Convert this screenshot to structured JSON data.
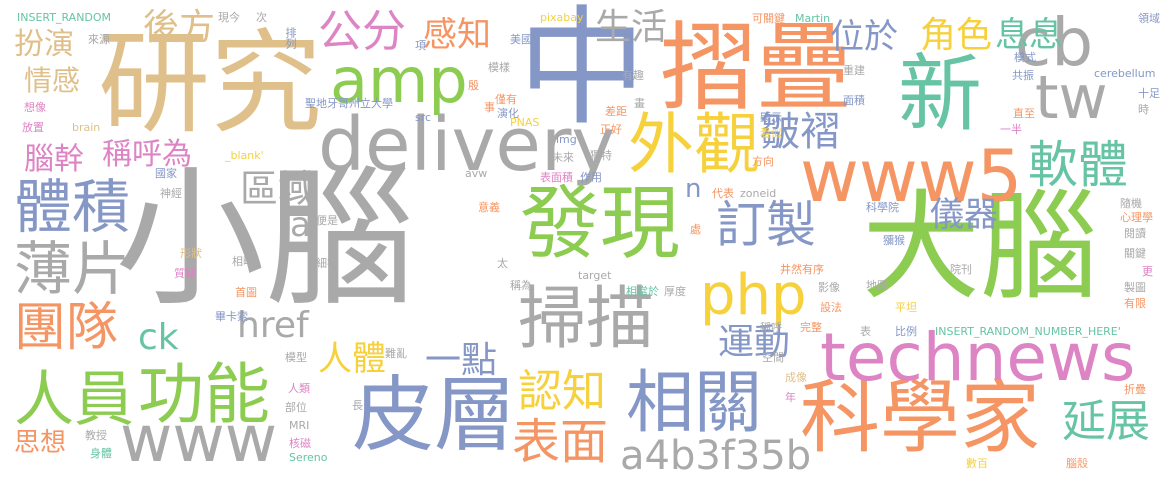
{
  "palette": {
    "gray": "#a9a9a9",
    "tan": "#e0c08a",
    "green": "#8ccc50",
    "blue": "#8497c6",
    "yellow": "#f6d13c",
    "orange": "#f59563",
    "pink": "#dd84c4",
    "teal": "#66c4a5"
  },
  "words": [
    {
      "text": "小腦",
      "color": "gray"
    },
    {
      "text": "大腦",
      "color": "green"
    },
    {
      "text": "中",
      "color": "blue"
    },
    {
      "text": "研究",
      "color": "tan"
    },
    {
      "text": "摺疊",
      "color": "orange"
    },
    {
      "text": "新",
      "color": "teal"
    },
    {
      "text": "cb",
      "color": "gray"
    },
    {
      "text": "tw",
      "color": "gray"
    },
    {
      "text": "delivery",
      "color": "gray"
    },
    {
      "text": "amp",
      "color": "green"
    },
    {
      "text": "www5",
      "color": "orange"
    },
    {
      "text": "發現",
      "color": "green"
    },
    {
      "text": "外觀",
      "color": "yellow"
    },
    {
      "text": "皮層",
      "color": "blue"
    },
    {
      "text": "科學家",
      "color": "orange"
    },
    {
      "text": "technews",
      "color": "pink"
    },
    {
      "text": "掃描",
      "color": "gray"
    },
    {
      "text": "相關",
      "color": "blue"
    },
    {
      "text": "www",
      "color": "gray"
    },
    {
      "text": "人員",
      "color": "green"
    },
    {
      "text": "功能",
      "color": "green"
    },
    {
      "text": "體積",
      "color": "blue"
    },
    {
      "text": "薄片",
      "color": "gray"
    },
    {
      "text": "團隊",
      "color": "orange"
    },
    {
      "text": "php",
      "color": "yellow"
    },
    {
      "text": "軟體",
      "color": "teal"
    },
    {
      "text": "訂製",
      "color": "blue"
    },
    {
      "text": "皺褶",
      "color": "blue"
    },
    {
      "text": "公分",
      "color": "pink"
    },
    {
      "text": "區域",
      "color": "gray"
    },
    {
      "text": "表面",
      "color": "orange"
    },
    {
      "text": "認知",
      "color": "yellow"
    },
    {
      "text": "a4b3f35b",
      "color": "gray"
    },
    {
      "text": "延展",
      "color": "teal"
    },
    {
      "text": "運動",
      "color": "blue"
    },
    {
      "text": "一點",
      "color": "blue"
    },
    {
      "text": "href",
      "color": "gray"
    },
    {
      "text": "ck",
      "color": "teal"
    },
    {
      "text": "人體",
      "color": "yellow"
    },
    {
      "text": "後方",
      "color": "tan"
    },
    {
      "text": "生活",
      "color": "gray"
    },
    {
      "text": "感知",
      "color": "orange"
    },
    {
      "text": "位於",
      "color": "blue"
    },
    {
      "text": "角色",
      "color": "yellow"
    },
    {
      "text": "息息",
      "color": "teal"
    },
    {
      "text": "扮演",
      "color": "tan"
    },
    {
      "text": "情感",
      "color": "tan"
    },
    {
      "text": "腦幹",
      "color": "pink"
    },
    {
      "text": "稱呼為",
      "color": "pink"
    },
    {
      "text": "儀器",
      "color": "blue"
    },
    {
      "text": "思想",
      "color": "orange"
    },
    {
      "text": "a",
      "color": "gray"
    },
    {
      "text": "n",
      "color": "blue"
    },
    {
      "text": "INSERT_RANDOM",
      "color": "teal"
    },
    {
      "text": "來源",
      "color": "gray"
    },
    {
      "text": "排列",
      "color": "blue"
    },
    {
      "text": "現今",
      "color": "gray"
    },
    {
      "text": "次",
      "color": "gray"
    },
    {
      "text": "pixabay",
      "color": "yellow"
    },
    {
      "text": "可關鍵",
      "color": "orange"
    },
    {
      "text": "Martin",
      "color": "teal"
    },
    {
      "text": "領域",
      "color": "blue"
    },
    {
      "text": "項",
      "color": "blue"
    },
    {
      "text": "美國",
      "color": "blue"
    },
    {
      "text": "殷",
      "color": "orange"
    },
    {
      "text": "模樣",
      "color": "gray"
    },
    {
      "text": "有趣",
      "color": "gray"
    },
    {
      "text": "重建",
      "color": "gray"
    },
    {
      "text": "模式",
      "color": "blue"
    },
    {
      "text": "共振",
      "color": "blue"
    },
    {
      "text": "cerebellum",
      "color": "blue"
    },
    {
      "text": "想像",
      "color": "pink"
    },
    {
      "text": "放置",
      "color": "pink"
    },
    {
      "text": "brain",
      "color": "tan"
    },
    {
      "text": "聖地牙哥州立大學",
      "color": "blue"
    },
    {
      "text": "src",
      "color": "blue"
    },
    {
      "text": "僅有",
      "color": "orange"
    },
    {
      "text": "演化",
      "color": "blue"
    },
    {
      "text": "事",
      "color": "orange"
    },
    {
      "text": "PNAS",
      "color": "yellow"
    },
    {
      "text": "差距",
      "color": "orange"
    },
    {
      "text": "畫",
      "color": "gray"
    },
    {
      "text": "顯示",
      "color": "blue"
    },
    {
      "text": "面積",
      "color": "blue"
    },
    {
      "text": "直至",
      "color": "orange"
    },
    {
      "text": "十足",
      "color": "blue"
    },
    {
      "text": "時",
      "color": "gray"
    },
    {
      "text": "_blank'",
      "color": "yellow"
    },
    {
      "text": "國家",
      "color": "blue"
    },
    {
      "text": "未來",
      "color": "gray"
    },
    {
      "text": "img",
      "color": "blue"
    },
    {
      "text": "正好",
      "color": "orange"
    },
    {
      "text": "獨特",
      "color": "gray"
    },
    {
      "text": "看似",
      "color": "yellow"
    },
    {
      "text": "一半",
      "color": "pink"
    },
    {
      "text": "神經",
      "color": "gray"
    },
    {
      "text": "avw",
      "color": "gray"
    },
    {
      "text": "表面積",
      "color": "pink"
    },
    {
      "text": "作用",
      "color": "blue"
    },
    {
      "text": "方向",
      "color": "orange"
    },
    {
      "text": "代表",
      "color": "orange"
    },
    {
      "text": "zoneid",
      "color": "gray"
    },
    {
      "text": "科學院",
      "color": "blue"
    },
    {
      "text": "隨機",
      "color": "gray"
    },
    {
      "text": "心理學",
      "color": "orange"
    },
    {
      "text": "閱讀",
      "color": "gray"
    },
    {
      "text": "意義",
      "color": "orange"
    },
    {
      "text": "處",
      "color": "orange"
    },
    {
      "text": "便是",
      "color": "gray"
    },
    {
      "text": "形狀",
      "color": "tan"
    },
    {
      "text": "獼猴",
      "color": "blue"
    },
    {
      "text": "關鍵",
      "color": "gray"
    },
    {
      "text": "相略",
      "color": "gray"
    },
    {
      "text": "細密",
      "color": "gray"
    },
    {
      "text": "質疑",
      "color": "pink"
    },
    {
      "text": "太",
      "color": "gray"
    },
    {
      "text": "target",
      "color": "gray"
    },
    {
      "text": "井然有序",
      "color": "orange"
    },
    {
      "text": "院刊",
      "color": "gray"
    },
    {
      "text": "更",
      "color": "pink"
    },
    {
      "text": "延伸",
      "color": "gray"
    },
    {
      "text": "首圖",
      "color": "orange"
    },
    {
      "text": "稱為",
      "color": "gray"
    },
    {
      "text": "相當於",
      "color": "teal"
    },
    {
      "text": "厚度",
      "color": "gray"
    },
    {
      "text": "影像",
      "color": "gray"
    },
    {
      "text": "地圖",
      "color": "gray"
    },
    {
      "text": "製圖",
      "color": "gray"
    },
    {
      "text": "有限",
      "color": "orange"
    },
    {
      "text": "設法",
      "color": "orange"
    },
    {
      "text": "平坦",
      "color": "yellow"
    },
    {
      "text": "畢卡索",
      "color": "blue"
    },
    {
      "text": "稱呼",
      "color": "gray"
    },
    {
      "text": "表",
      "color": "gray"
    },
    {
      "text": "比例",
      "color": "blue"
    },
    {
      "text": "完整",
      "color": "orange"
    },
    {
      "text": "INSERT_RANDOM_NUMBER_HERE'",
      "color": "teal"
    },
    {
      "text": "模型",
      "color": "gray"
    },
    {
      "text": "人類",
      "color": "pink"
    },
    {
      "text": "部位",
      "color": "gray"
    },
    {
      "text": "難亂",
      "color": "gray"
    },
    {
      "text": "空間",
      "color": "gray"
    },
    {
      "text": "成像",
      "color": "tan"
    },
    {
      "text": "折疊",
      "color": "orange"
    },
    {
      "text": "長",
      "color": "gray"
    },
    {
      "text": "年",
      "color": "pink"
    },
    {
      "text": "MRI",
      "color": "gray"
    },
    {
      "text": "教授",
      "color": "gray"
    },
    {
      "text": "核磁",
      "color": "pink"
    },
    {
      "text": "身體",
      "color": "teal"
    },
    {
      "text": "Sereno",
      "color": "teal"
    },
    {
      "text": "數百",
      "color": "yellow"
    },
    {
      "text": "腦殼",
      "color": "orange"
    }
  ]
}
